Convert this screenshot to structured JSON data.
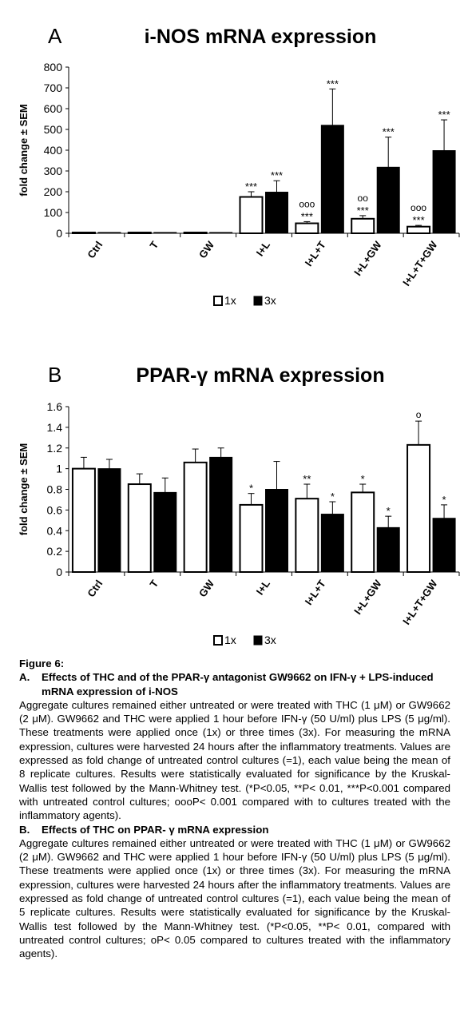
{
  "chart_data": [
    {
      "type": "bar",
      "panel_letter": "A",
      "title": "i-NOS mRNA expression",
      "ylabel": "fold change ± SEM",
      "xlabel": "",
      "ylim": [
        0,
        800
      ],
      "yticks": [
        "0",
        "100",
        "200",
        "300",
        "400",
        "500",
        "600",
        "700",
        "800"
      ],
      "ytick_values": [
        0,
        100,
        200,
        300,
        400,
        500,
        600,
        700,
        800
      ],
      "categories": [
        "Ctrl",
        "T",
        "GW",
        "I+L",
        "I+L+T",
        "I+L+GW",
        "I+L+T+GW"
      ],
      "series": [
        {
          "name": "1x",
          "color": "#ffffff",
          "values": [
            1,
            1,
            1,
            175,
            48,
            70,
            32
          ],
          "errors": [
            0,
            0,
            0,
            25,
            8,
            15,
            6
          ],
          "stars": [
            "",
            "",
            "",
            "***",
            "***",
            "***",
            "***"
          ],
          "circles": [
            "",
            "",
            "",
            "",
            "ooo",
            "oo",
            "ooo"
          ]
        },
        {
          "name": "3x",
          "color": "#000000",
          "values": [
            1,
            1,
            1,
            198,
            520,
            318,
            398
          ],
          "errors": [
            0,
            0,
            0,
            55,
            175,
            145,
            148
          ],
          "stars": [
            "",
            "",
            "",
            "***",
            "***",
            "***",
            "***"
          ],
          "circles": [
            "",
            "",
            "",
            "",
            "",
            "",
            ""
          ]
        }
      ],
      "legend": [
        "1x",
        "3x"
      ],
      "grid": false,
      "legend_position": "bottom"
    },
    {
      "type": "bar",
      "panel_letter": "B",
      "title": "PPAR-γ mRNA expression",
      "ylabel": "fold change ± SEM",
      "xlabel": "",
      "ylim": [
        0,
        1.6
      ],
      "yticks": [
        "0",
        "0.2",
        "0.4",
        "0.6",
        "0.8",
        "1",
        "1.2",
        "1.4",
        "1.6"
      ],
      "ytick_values": [
        0,
        0.2,
        0.4,
        0.6,
        0.8,
        1.0,
        1.2,
        1.4,
        1.6
      ],
      "categories": [
        "Ctrl",
        "T",
        "GW",
        "I+L",
        "I+L+T",
        "I+L+GW",
        "I+L+T+GW"
      ],
      "series": [
        {
          "name": "1x",
          "color": "#ffffff",
          "values": [
            1.0,
            0.85,
            1.06,
            0.65,
            0.71,
            0.77,
            1.23
          ],
          "errors": [
            0.11,
            0.1,
            0.13,
            0.11,
            0.14,
            0.08,
            0.23
          ],
          "stars": [
            "",
            "",
            "",
            "*",
            "**",
            "*",
            ""
          ],
          "circles": [
            "",
            "",
            "",
            "",
            "",
            "",
            "o"
          ]
        },
        {
          "name": "3x",
          "color": "#000000",
          "values": [
            1.0,
            0.77,
            1.11,
            0.8,
            0.56,
            0.43,
            0.52
          ],
          "errors": [
            0.09,
            0.14,
            0.09,
            0.27,
            0.12,
            0.11,
            0.13
          ],
          "stars": [
            "",
            "",
            "",
            "",
            "*",
            "*",
            "*"
          ],
          "circles": [
            "",
            "",
            "",
            "",
            "",
            "",
            ""
          ]
        }
      ],
      "legend": [
        "1x",
        "3x"
      ],
      "grid": false,
      "legend_position": "bottom"
    }
  ],
  "caption": {
    "figure_label": "Figure 6:",
    "a_letter": "A.",
    "a_title": "Effects of THC and of the PPAR-γ antagonist GW9662 on IFN-γ + LPS-induced mRNA expression of i-NOS",
    "a_body": "Aggregate cultures remained either untreated or were treated with THC (1 μM) or GW9662 (2 μM). GW9662 and THC were applied 1 hour before IFN-γ (50 U/ml) plus LPS (5 μg/ml). These treatments were applied once (1x) or three times (3x). For measuring the mRNA expression, cultures were harvested 24 hours after the inflammatory treatments. Values are expressed as fold change of untreated control cultures (=1), each value being the mean of 8 replicate cultures. Results were statistically evaluated for significance by the Kruskal-Wallis test followed by the Mann-Whitney test. (*P<0.05, **P< 0.01, ***P<0.001 compared with untreated control cultures; oooP< 0.001 compared with to cultures treated with the inflammatory agents).",
    "b_letter": "B.",
    "b_title": "Effects of THC on PPAR- γ mRNA expression",
    "b_body": "Aggregate cultures remained either untreated or were treated with THC (1 μM) or GW9662 (2 μM). GW9662 and THC were applied 1 hour before IFN-γ (50 U/ml) plus LPS (5 μg/ml). These treatments were applied once (1x) or three times (3x). For measuring the mRNA expression, cultures were harvested 24 hours after the inflammatory treatments. Values are expressed as fold change of untreated control cultures (=1), each value being the mean of 5 replicate cultures. Results were statistically evaluated for significance by the Kruskal-Wallis test followed by the Mann-Whitney test. (*P<0.05, **P< 0.01, compared with untreated control cultures; oP< 0.05 compared to cultures treated with the inflammatory agents)."
  }
}
